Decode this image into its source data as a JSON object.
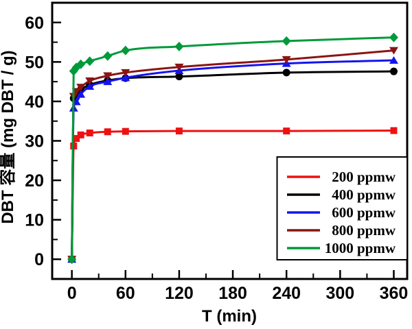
{
  "figure": {
    "background_color": "#ffffff",
    "frame_color": "#000000",
    "text_color": "#000000"
  },
  "chart_data": {
    "type": "line",
    "title": "",
    "xlabel": "T (min)",
    "ylabel": "DBT 容量 (mg DBT / g)",
    "xlim": [
      -22,
      375
    ],
    "ylim": [
      -5,
      65
    ],
    "grid": false,
    "x_ticks": [
      0,
      60,
      120,
      180,
      240,
      300,
      360
    ],
    "x_minor_ticks": [
      30,
      90,
      150,
      210,
      270,
      330
    ],
    "y_ticks": [
      0,
      10,
      20,
      30,
      40,
      50,
      60
    ],
    "y_minor_ticks": [
      5,
      15,
      25,
      35,
      45,
      55
    ],
    "x": [
      0,
      2,
      5,
      10,
      20,
      40,
      60,
      120,
      240,
      360
    ],
    "series": [
      {
        "name": "200 ppmw",
        "color": "#ee1111",
        "marker": "square",
        "values": [
          0,
          28.7,
          30.6,
          31.5,
          32.0,
          32.3,
          32.4,
          32.5,
          32.5,
          32.6
        ]
      },
      {
        "name": "400 ppmw",
        "color": "#000000",
        "marker": "circle",
        "values": [
          0,
          40.8,
          42.0,
          43.0,
          44.2,
          45.3,
          45.9,
          46.3,
          47.3,
          47.6
        ]
      },
      {
        "name": "600 ppmw",
        "color": "#1414ee",
        "marker": "triangle-up",
        "values": [
          0,
          38.3,
          39.9,
          41.8,
          43.8,
          45.0,
          46.0,
          47.8,
          49.6,
          50.4
        ]
      },
      {
        "name": "800 ppmw",
        "color": "#8b1414",
        "marker": "triangle-down",
        "values": [
          0,
          41.3,
          42.5,
          43.6,
          45.2,
          46.5,
          47.3,
          48.7,
          50.6,
          52.9
        ]
      },
      {
        "name": "1000 ppmw",
        "color": "#009a3a",
        "marker": "diamond",
        "values": [
          0,
          47.7,
          48.6,
          49.4,
          50.2,
          51.5,
          52.9,
          53.9,
          55.3,
          56.2
        ]
      }
    ],
    "legend": {
      "position": "bottom-right",
      "entries": [
        "200 ppmw",
        "400 ppmw",
        "600 ppmw",
        "800 ppmw",
        "1000 ppmw"
      ]
    }
  }
}
